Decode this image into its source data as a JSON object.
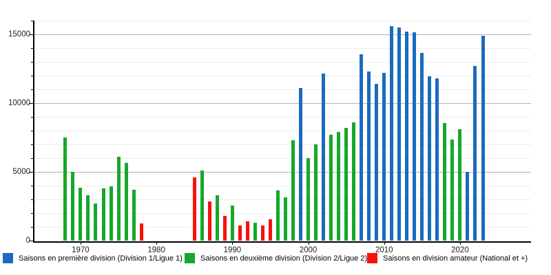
{
  "chart_data": {
    "type": "bar",
    "title": "",
    "xlabel": "",
    "ylabel": "",
    "ylim": [
      0,
      16000
    ],
    "y_major_ticks": [
      0,
      5000,
      10000,
      15000
    ],
    "y_minor_step": 1000,
    "x_decade_ticks": [
      1970,
      1980,
      1990,
      2000,
      2010,
      2020
    ],
    "x_range": [
      1968,
      2023
    ],
    "missing_years": [
      1979,
      1980,
      1981,
      1982,
      1983,
      1984
    ],
    "grid": true,
    "legend_position": "bottom",
    "series": [
      {
        "name": "Saisons en première division (Division 1/Ligue 1)",
        "color": "#1a6bbd",
        "points": [
          [
            1999,
            11100
          ],
          [
            2002,
            12150
          ],
          [
            2007,
            13550
          ],
          [
            2008,
            12300
          ],
          [
            2009,
            11400
          ],
          [
            2010,
            12200
          ],
          [
            2011,
            15600
          ],
          [
            2012,
            15500
          ],
          [
            2013,
            15200
          ],
          [
            2014,
            15150
          ],
          [
            2015,
            13650
          ],
          [
            2016,
            11950
          ],
          [
            2017,
            11800
          ],
          [
            2021,
            5000
          ],
          [
            2022,
            12700
          ],
          [
            2023,
            14900
          ]
        ]
      },
      {
        "name": "Saisons en deuxième division (Division 2/Ligue 2)",
        "color": "#15a82a",
        "points": [
          [
            1968,
            7500
          ],
          [
            1969,
            5000
          ],
          [
            1970,
            3850
          ],
          [
            1971,
            3300
          ],
          [
            1972,
            2700
          ],
          [
            1973,
            3800
          ],
          [
            1974,
            3950
          ],
          [
            1975,
            6100
          ],
          [
            1976,
            5650
          ],
          [
            1977,
            3700
          ],
          [
            1986,
            5100
          ],
          [
            1988,
            3300
          ],
          [
            1990,
            2550
          ],
          [
            1993,
            1300
          ],
          [
            1996,
            3650
          ],
          [
            1997,
            3150
          ],
          [
            1998,
            7300
          ],
          [
            2000,
            6000
          ],
          [
            2001,
            7000
          ],
          [
            2003,
            7700
          ],
          [
            2004,
            7900
          ],
          [
            2005,
            8200
          ],
          [
            2006,
            8600
          ],
          [
            2018,
            8550
          ],
          [
            2019,
            7350
          ],
          [
            2020,
            8100
          ]
        ]
      },
      {
        "name": "Saisons en division amateur (National et +)",
        "color": "#f5140c",
        "points": [
          [
            1978,
            1250
          ],
          [
            1985,
            4600
          ],
          [
            1987,
            2850
          ],
          [
            1989,
            1800
          ],
          [
            1991,
            1100
          ],
          [
            1992,
            1400
          ],
          [
            1994,
            1100
          ],
          [
            1995,
            1550
          ]
        ]
      }
    ]
  },
  "axes": {
    "y_labels": [
      "0",
      "5000",
      "10000",
      "15000"
    ],
    "x_labels": [
      "1970",
      "1980",
      "1990",
      "2000",
      "2010",
      "2020"
    ]
  },
  "legend": {
    "items": [
      {
        "label": "Saisons en première division (Division 1/Ligue 1)"
      },
      {
        "label": "Saisons en deuxième division (Division 2/Ligue 2)"
      },
      {
        "label": "Saisons en division amateur (National et +)"
      }
    ]
  }
}
